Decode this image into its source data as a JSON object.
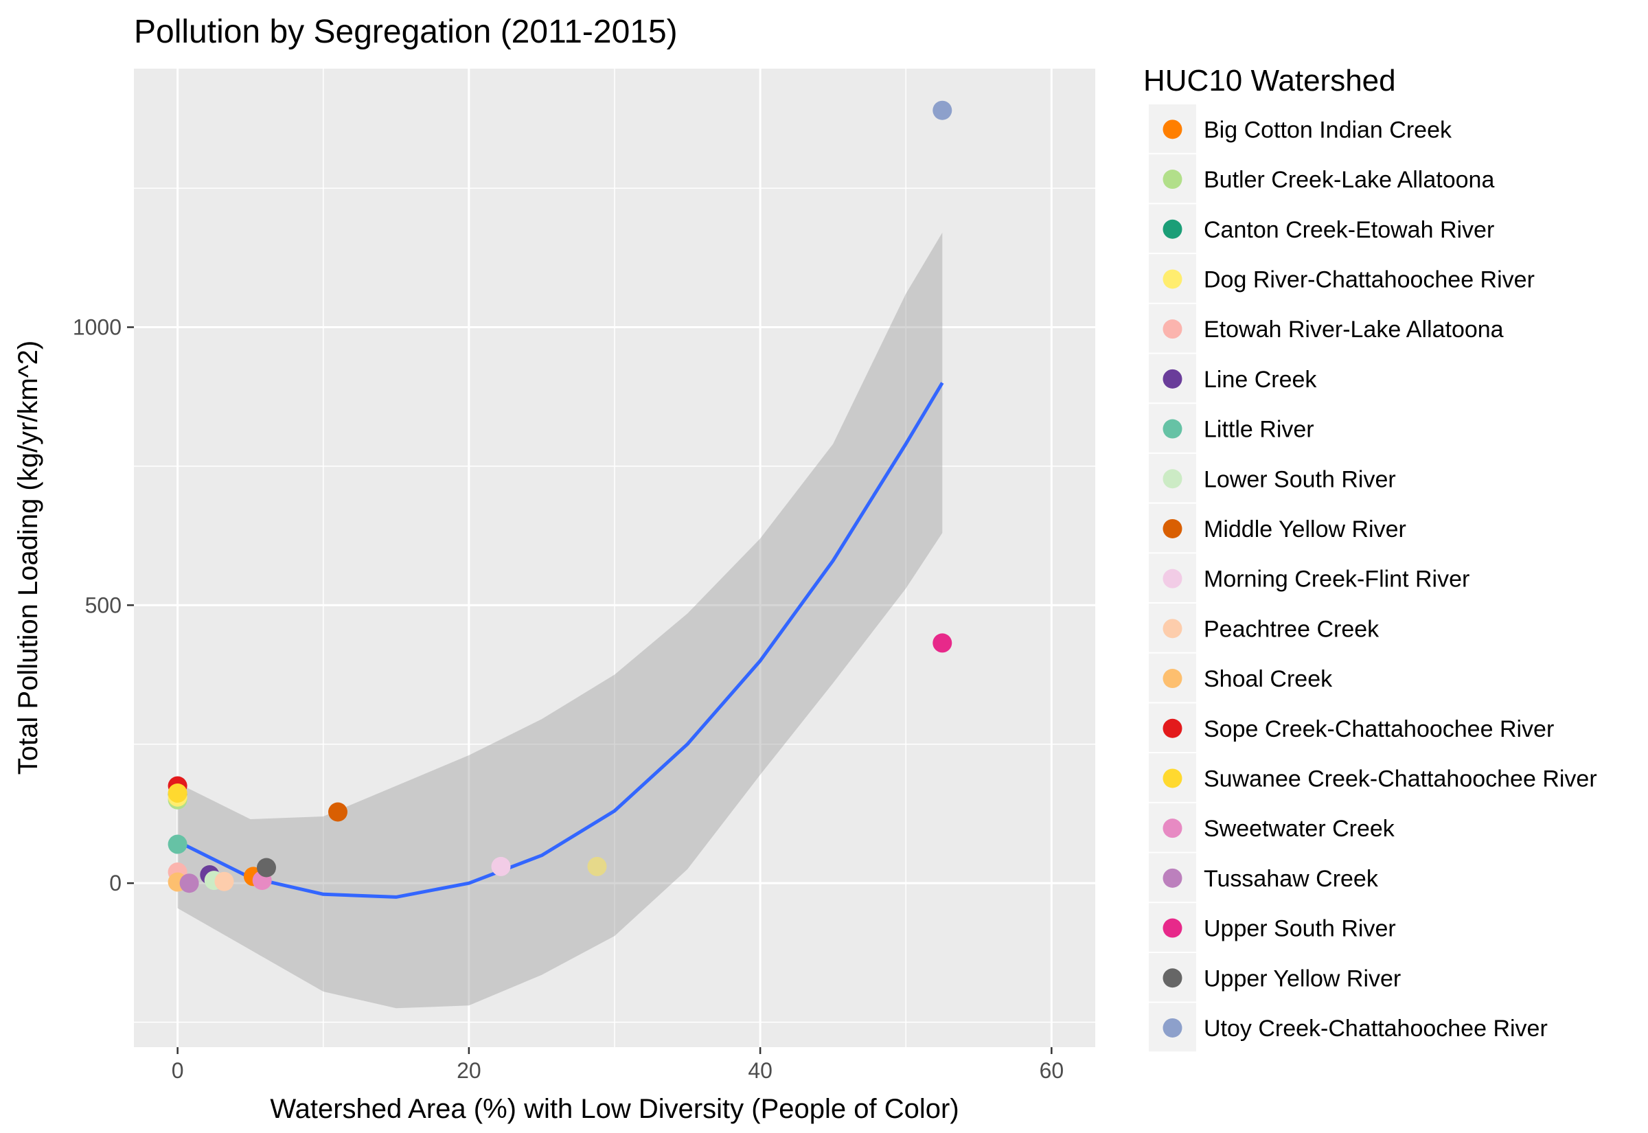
{
  "chart_data": {
    "type": "scatter",
    "title": "Pollution by Segregation (2011-2015)",
    "xlabel": "Watershed Area (%) with Low Diversity (People of Color)",
    "ylabel": "Total Pollution Loading (kg/yr/km^2)",
    "xlim": [
      -3,
      63
    ],
    "ylim": [
      -295,
      1465
    ],
    "x_ticks": [
      0,
      20,
      40,
      60
    ],
    "x_tick_labels": [
      "0",
      "20",
      "40",
      "60"
    ],
    "y_ticks": [
      0,
      500,
      1000
    ],
    "y_tick_labels": [
      "0",
      "500",
      "1000"
    ],
    "grid": true,
    "legend": {
      "title": "HUC10 Watershed",
      "placement": "right"
    },
    "series": [
      {
        "name": "Big Cotton Indian Creek",
        "color": "#FF7F00",
        "x": [
          5.2
        ],
        "y": [
          12
        ]
      },
      {
        "name": "Butler Creek-Lake Allatoona",
        "color": "#B2DF8A",
        "x": [
          0.0
        ],
        "y": [
          150
        ]
      },
      {
        "name": "Canton Creek-Etowah River",
        "color": "#1B9E77",
        "x": [
          0.0
        ],
        "y": [
          160
        ]
      },
      {
        "name": "Dog River-Chattahoochee River",
        "color": "#FFED6F",
        "x": [
          0.0
        ],
        "y": [
          155
        ]
      },
      {
        "name": "Etowah River-Lake Allatoona",
        "color": "#FBB4AE",
        "x": [
          0.0
        ],
        "y": [
          20
        ]
      },
      {
        "name": "Line Creek",
        "color": "#6A3D9A",
        "x": [
          2.2
        ],
        "y": [
          15
        ]
      },
      {
        "name": "Little River",
        "color": "#66C2A5",
        "x": [
          0.0
        ],
        "y": [
          70
        ]
      },
      {
        "name": "Lower South River",
        "color": "#CCEBC5",
        "x": [
          2.5
        ],
        "y": [
          5
        ]
      },
      {
        "name": "Middle Yellow River",
        "color": "#D95F02",
        "x": [
          11.0
        ],
        "y": [
          128
        ]
      },
      {
        "name": "Morning Creek-Flint River",
        "color": "#F2CCE6",
        "x": [
          22.2
        ],
        "y": [
          30
        ]
      },
      {
        "name": "Peachtree Creek",
        "color": "#FDCDAC",
        "x": [
          3.2
        ],
        "y": [
          3
        ]
      },
      {
        "name": "Shoal Creek",
        "color": "#FDBF6F",
        "x": [
          0.0
        ],
        "y": [
          2
        ]
      },
      {
        "name": "Sope Creek-Chattahoochee River",
        "color": "#E31A1C",
        "x": [
          0.0
        ],
        "y": [
          175
        ]
      },
      {
        "name": "Suwanee Creek-Chattahoochee River",
        "color": "#FFD92F",
        "x": [
          0.0
        ],
        "y": [
          162
        ]
      },
      {
        "name": "Sweetwater Creek",
        "color": "#E78AC3",
        "x": [
          5.8
        ],
        "y": [
          5
        ]
      },
      {
        "name": "Tussahaw Creek",
        "color": "#BC80BD",
        "x": [
          0.8
        ],
        "y": [
          0
        ]
      },
      {
        "name": "Upper South River",
        "color": "#E7298A",
        "x": [
          52.5
        ],
        "y": [
          432
        ]
      },
      {
        "name": "Upper Yellow River",
        "color": "#666666",
        "x": [
          6.1
        ],
        "y": [
          28
        ]
      },
      {
        "name": "Utoy Creek-Chattahoochee River",
        "color": "#8DA0CB",
        "x": [
          52.5
        ],
        "y": [
          1390
        ]
      }
    ],
    "extra_point": {
      "color": "#E6D98A",
      "x": [
        28.8
      ],
      "y": [
        30
      ]
    },
    "trend": {
      "method": "loess",
      "color": "#3366FF",
      "x": [
        0,
        5,
        10,
        15,
        20,
        25,
        30,
        35,
        40,
        45,
        50,
        52.5
      ],
      "y": [
        75,
        10,
        -20,
        -25,
        0,
        50,
        130,
        250,
        400,
        580,
        790,
        900
      ],
      "ci_low": [
        -45,
        -120,
        -195,
        -225,
        -220,
        -165,
        -95,
        25,
        195,
        360,
        530,
        630
      ],
      "ci_high": [
        180,
        115,
        120,
        175,
        230,
        295,
        375,
        485,
        620,
        790,
        1060,
        1170
      ]
    }
  }
}
